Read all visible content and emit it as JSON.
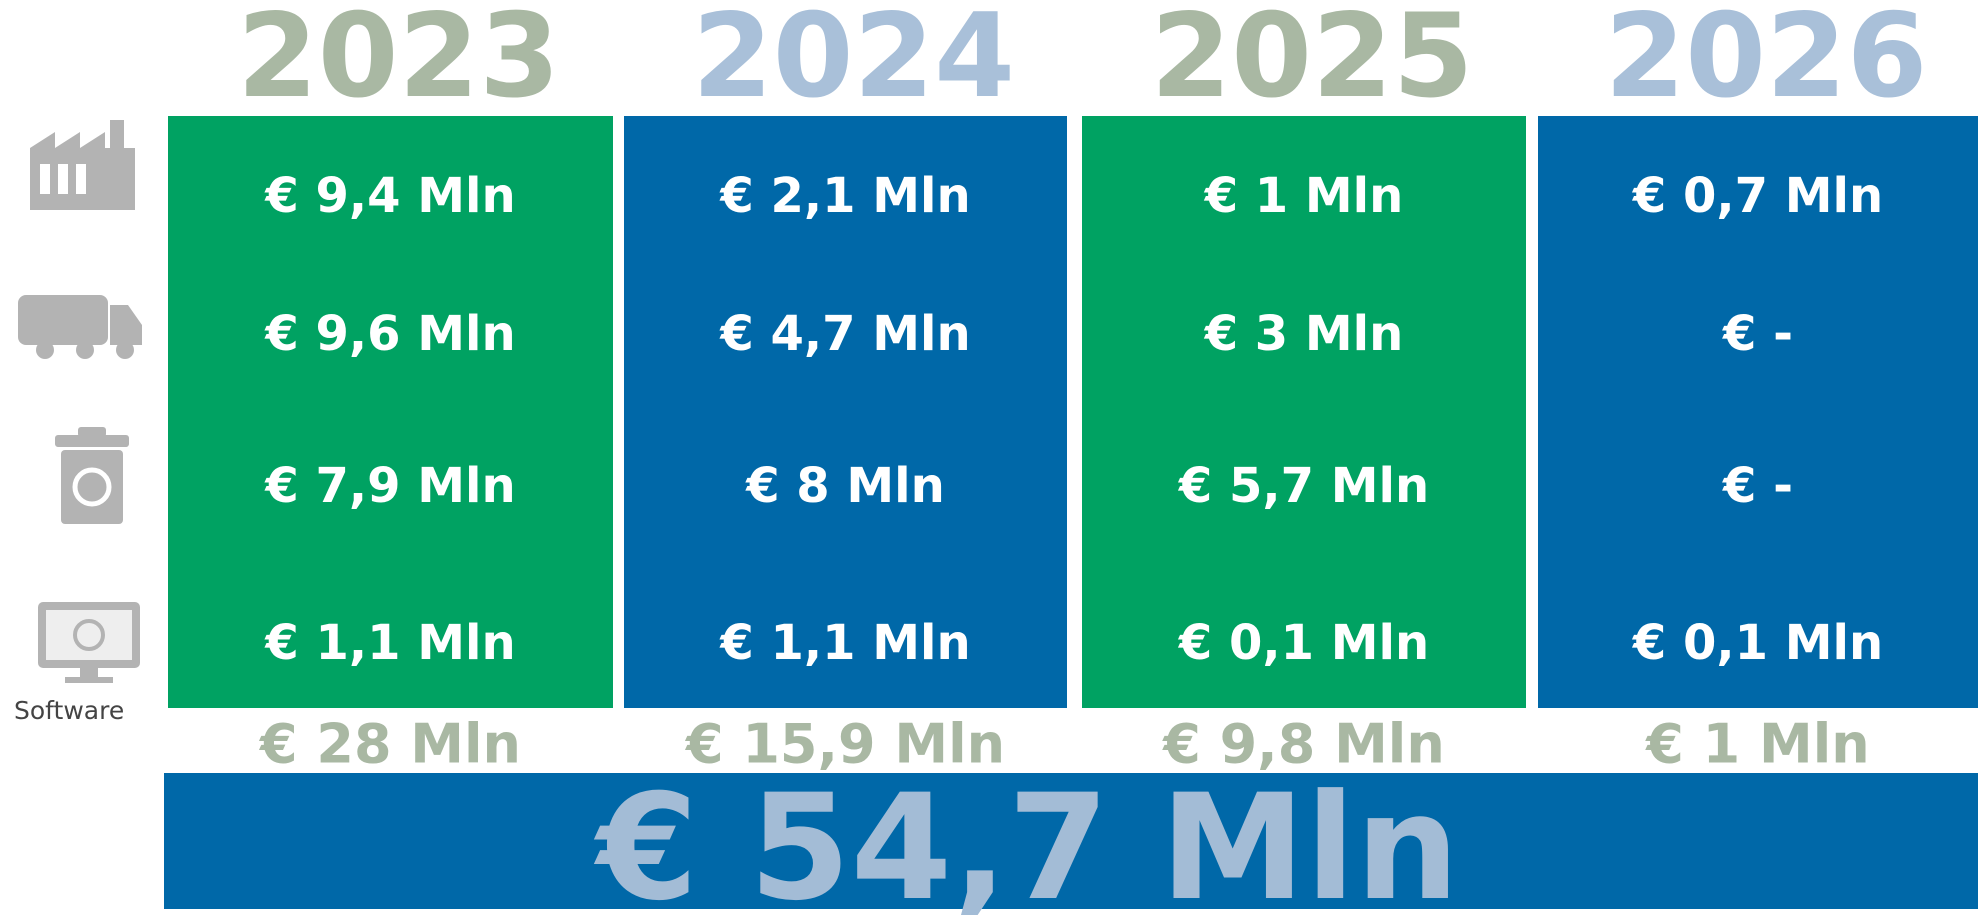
{
  "columns": [
    {
      "year": "2023",
      "cells": [
        "€ 9,4 Mln",
        "€ 9,6 Mln",
        "€ 7,9 Mln",
        "€ 1,1 Mln"
      ],
      "total": "€ 28 Mln"
    },
    {
      "year": "2024",
      "cells": [
        "€ 2,1 Mln",
        "€ 4,7 Mln",
        "€ 8 Mln",
        "€ 1,1 Mln"
      ],
      "total": "€ 15,9 Mln"
    },
    {
      "year": "2025",
      "cells": [
        "€ 1 Mln",
        "€ 3 Mln",
        "€ 5,7 Mln",
        "€ 0,1 Mln"
      ],
      "total": "€ 9,8 Mln"
    },
    {
      "year": "2026",
      "cells": [
        "€ 0,7 Mln",
        "€ -",
        "€ -",
        "€ 0,1 Mln"
      ],
      "total": "€ 1 Mln"
    }
  ],
  "grand_total": "€ 54,7 Mln",
  "icon_label": "Software"
}
